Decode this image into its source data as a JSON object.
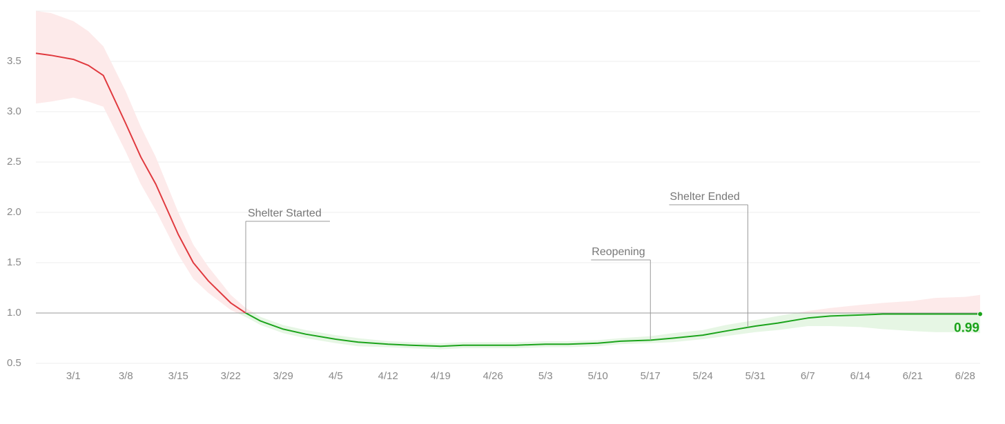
{
  "chart_data": {
    "type": "line",
    "x": [
      "2/25",
      "2/27",
      "3/1",
      "3/3",
      "3/5",
      "3/8",
      "3/10",
      "3/12",
      "3/15",
      "3/17",
      "3/19",
      "3/22",
      "3/24",
      "3/26",
      "3/29",
      "4/1",
      "4/5",
      "4/8",
      "4/12",
      "4/15",
      "4/19",
      "4/22",
      "4/26",
      "4/29",
      "5/3",
      "5/6",
      "5/10",
      "5/13",
      "5/17",
      "5/20",
      "5/24",
      "5/27",
      "5/31",
      "6/3",
      "6/7",
      "6/10",
      "6/14",
      "6/17",
      "6/21",
      "6/24",
      "6/28",
      "6/30"
    ],
    "values": [
      3.58,
      3.56,
      3.52,
      3.46,
      3.36,
      2.88,
      2.55,
      2.28,
      1.78,
      1.5,
      1.32,
      1.1,
      1.0,
      0.92,
      0.84,
      0.79,
      0.74,
      0.71,
      0.69,
      0.68,
      0.67,
      0.68,
      0.68,
      0.68,
      0.69,
      0.69,
      0.7,
      0.72,
      0.73,
      0.75,
      0.78,
      0.82,
      0.87,
      0.9,
      0.95,
      0.97,
      0.98,
      0.99,
      0.99,
      0.99,
      0.99,
      0.99
    ],
    "upper": [
      4.0,
      3.98,
      3.9,
      3.8,
      3.65,
      3.2,
      2.85,
      2.55,
      2.0,
      1.68,
      1.46,
      1.18,
      1.05,
      0.96,
      0.88,
      0.83,
      0.78,
      0.75,
      0.72,
      0.71,
      0.7,
      0.71,
      0.71,
      0.71,
      0.72,
      0.72,
      0.73,
      0.75,
      0.77,
      0.8,
      0.83,
      0.88,
      0.93,
      0.97,
      1.02,
      1.05,
      1.08,
      1.1,
      1.12,
      1.15,
      1.16,
      1.18
    ],
    "lower": [
      3.08,
      3.1,
      3.14,
      3.1,
      3.05,
      2.6,
      2.28,
      2.02,
      1.58,
      1.34,
      1.2,
      1.03,
      0.96,
      0.88,
      0.8,
      0.75,
      0.7,
      0.67,
      0.66,
      0.65,
      0.64,
      0.65,
      0.65,
      0.65,
      0.66,
      0.66,
      0.67,
      0.69,
      0.7,
      0.71,
      0.74,
      0.77,
      0.81,
      0.83,
      0.87,
      0.87,
      0.86,
      0.84,
      0.82,
      0.81,
      0.81,
      0.8
    ],
    "value_labels": [
      null,
      null,
      null,
      null,
      null,
      null,
      null,
      null,
      null,
      null,
      null,
      null,
      null,
      null,
      null,
      null,
      null,
      null,
      null,
      null,
      null,
      null,
      null,
      null,
      null,
      null,
      null,
      null,
      null,
      null,
      null,
      null,
      null,
      null,
      null,
      null,
      null,
      null,
      null,
      null,
      null,
      "0.99"
    ],
    "threshold": 1,
    "color_above": "#e0393e",
    "color_below": "#1aa31a",
    "band_above": "#fdeaea",
    "band_below": "#e6f6e4",
    "xlim": [
      "2/25",
      "6/30"
    ],
    "xticks": [
      "3/1",
      "3/8",
      "3/15",
      "3/22",
      "3/29",
      "4/5",
      "4/12",
      "4/19",
      "4/26",
      "5/3",
      "5/10",
      "5/17",
      "5/24",
      "5/31",
      "6/7",
      "6/14",
      "6/21",
      "6/28"
    ],
    "ylim": [
      0.5,
      4.0
    ],
    "yticks": [
      0.5,
      {
        "value": 1,
        "label": "1.0"
      },
      1.5,
      {
        "value": 2,
        "label": "2.0"
      },
      2.5,
      {
        "value": 3,
        "label": "3.0"
      },
      3.5
    ],
    "grid": true,
    "annotations": [
      {
        "text": "Shelter Started",
        "x": "3/24"
      },
      {
        "text": "Reopening",
        "x": "5/17"
      },
      {
        "text": "Shelter Ended",
        "x": "5/30"
      }
    ]
  }
}
